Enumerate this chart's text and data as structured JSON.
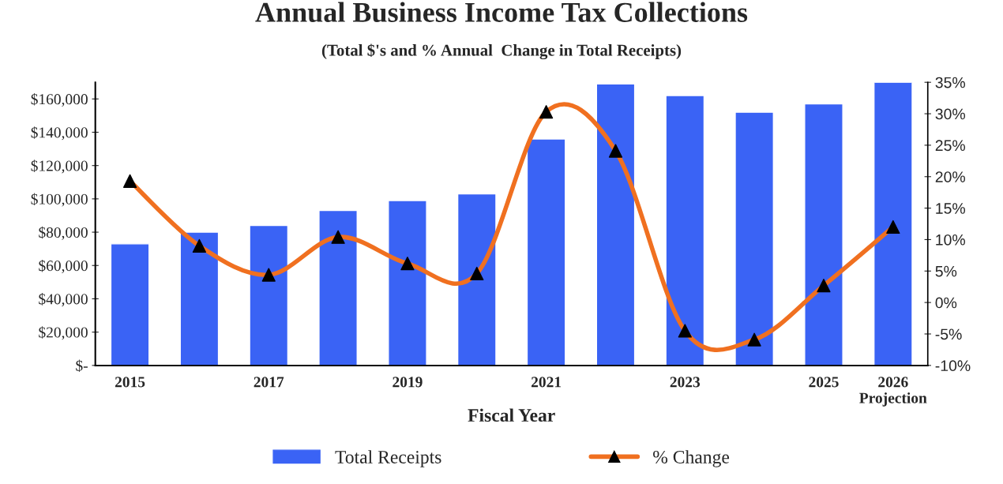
{
  "chart_data": {
    "type": "bar",
    "title": "Annual Business Income Tax Collections",
    "subtitle": "(Total $'s and % Annual  Change in Total Receipts)",
    "xlabel": "Fiscal Year",
    "categories": [
      "2015",
      null,
      "2017",
      null,
      "2019",
      null,
      "2021",
      null,
      "2023",
      null,
      "2025",
      "2026\nProjection"
    ],
    "series": [
      {
        "name": "Total Receipts",
        "color": "#3a63f5",
        "values": [
          73000,
          80000,
          84000,
          93000,
          99000,
          103000,
          136000,
          169000,
          162000,
          152000,
          157000,
          170000
        ]
      },
      {
        "name": "% Change",
        "type": "line",
        "axis": "y2",
        "color": "#f07020",
        "marker": "triangle",
        "line_style": "solid",
        "values": [
          19.3,
          9.0,
          4.4,
          10.4,
          6.2,
          4.6,
          30.3,
          24.1,
          -4.5,
          -5.9,
          2.7,
          12.0
        ]
      }
    ],
    "ylim": [
      0,
      170000
    ],
    "yticks": [
      {
        "value": 0,
        "label": "$-"
      },
      {
        "value": 20000,
        "label": "$20,000"
      },
      {
        "value": 40000,
        "label": "$40,000"
      },
      {
        "value": 60000,
        "label": "$60,000"
      },
      {
        "value": 80000,
        "label": "$80,000"
      },
      {
        "value": 100000,
        "label": "$100,000"
      },
      {
        "value": 120000,
        "label": "$120,000"
      },
      {
        "value": 140000,
        "label": "$140,000"
      },
      {
        "value": 160000,
        "label": "$160,000"
      }
    ],
    "y2lim": [
      -10,
      35
    ],
    "y2ticks": [
      {
        "value": -10,
        "label": "-10%"
      },
      {
        "value": -5,
        "label": "-5%"
      },
      {
        "value": 0,
        "label": "0%"
      },
      {
        "value": 5,
        "label": "5%"
      },
      {
        "value": 10,
        "label": "10%"
      },
      {
        "value": 15,
        "label": "15%"
      },
      {
        "value": 20,
        "label": "20%"
      },
      {
        "value": 25,
        "label": "25%"
      },
      {
        "value": 30,
        "label": "30%"
      },
      {
        "value": 35,
        "label": "35%"
      }
    ],
    "grid": false,
    "legend": "bottom"
  }
}
